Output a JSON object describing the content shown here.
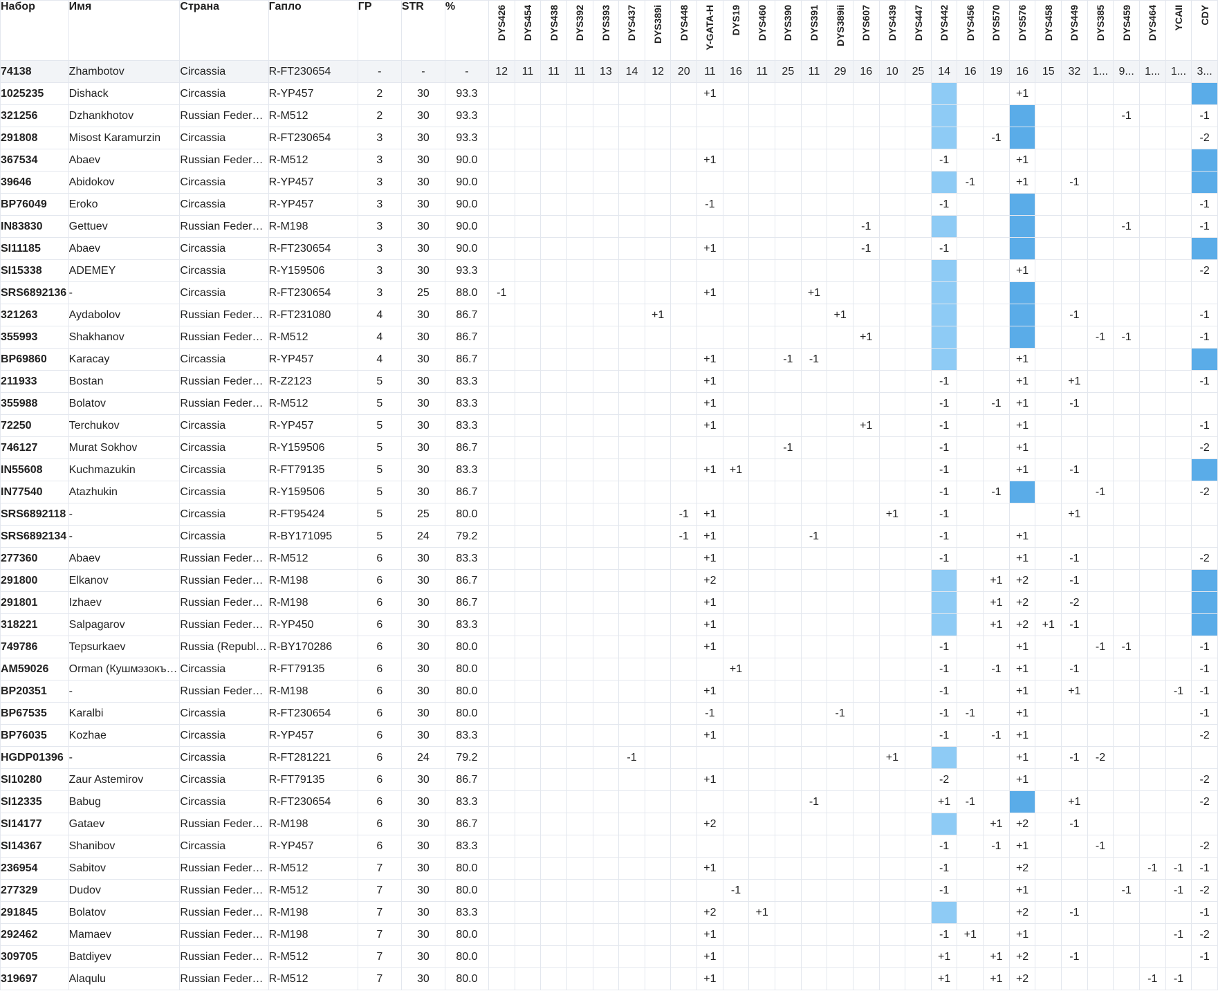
{
  "columns": {
    "kit": "Набор",
    "name": "Имя",
    "country": "Страна",
    "haplo": "Гапло",
    "gd": "ГР",
    "str": "STR",
    "pct": "%"
  },
  "markers": [
    "DYS426",
    "DYS454",
    "DYS438",
    "DYS392",
    "DYS393",
    "DYS437",
    "DYS389i",
    "DYS448",
    "Y-GATA-H",
    "DYS19",
    "DYS460",
    "DYS390",
    "DYS391",
    "DYS389ii",
    "DYS607",
    "DYS439",
    "DYS447",
    "DYS442",
    "DYS456",
    "DYS570",
    "DYS576",
    "DYS458",
    "DYS449",
    "DYS385",
    "DYS459",
    "DYS464",
    "YCAII",
    "CDY"
  ],
  "reference": {
    "kit": "74138",
    "name": "Zhambotov",
    "country": "Circassia",
    "haplo": "R-FT230654",
    "gd": "-",
    "str": "-",
    "pct": "-",
    "values": [
      "12",
      "11",
      "11",
      "11",
      "13",
      "14",
      "12",
      "20",
      "11",
      "16",
      "11",
      "25",
      "11",
      "29",
      "16",
      "10",
      "25",
      "14",
      "16",
      "19",
      "16",
      "15",
      "32",
      "1...",
      "9...",
      "1...",
      "1...",
      "3..."
    ]
  },
  "rows": [
    {
      "kit": "1025235",
      "name": "Dishack",
      "country": "Circassia",
      "haplo": "R-YP457",
      "gd": "2",
      "str": "30",
      "pct": "93.3",
      "cells": {
        "Y-GATA-H": "+1",
        "DYS576": "+1"
      },
      "shade": {
        "DYS442": 1,
        "CDY": 2
      }
    },
    {
      "kit": "321256",
      "name": "Dzhankhotov",
      "country": "Russian Federation",
      "haplo": "R-M512",
      "gd": "2",
      "str": "30",
      "pct": "93.3",
      "cells": {
        "DYS459": "-1",
        "CDY": "-1"
      },
      "shade": {
        "DYS442": 1,
        "DYS576": 2
      }
    },
    {
      "kit": "291808",
      "name": "Misost Karamurzin",
      "country": "Circassia",
      "haplo": "R-FT230654",
      "gd": "3",
      "str": "30",
      "pct": "93.3",
      "cells": {
        "DYS570": "-1",
        "CDY": "-2"
      },
      "shade": {
        "DYS442": 1,
        "DYS576": 2
      }
    },
    {
      "kit": "367534",
      "name": "Abaev",
      "country": "Russian Federation",
      "haplo": "R-M512",
      "gd": "3",
      "str": "30",
      "pct": "90.0",
      "cells": {
        "Y-GATA-H": "+1",
        "DYS442": "-1",
        "DYS576": "+1"
      },
      "shade": {
        "CDY": 2
      }
    },
    {
      "kit": "39646",
      "name": "Abidokov",
      "country": "Circassia",
      "haplo": "R-YP457",
      "gd": "3",
      "str": "30",
      "pct": "90.0",
      "cells": {
        "DYS456": "-1",
        "DYS576": "+1",
        "DYS449": "-1"
      },
      "shade": {
        "DYS442": 1,
        "CDY": 2
      }
    },
    {
      "kit": "BP76049",
      "name": "Eroko",
      "country": "Circassia",
      "haplo": "R-YP457",
      "gd": "3",
      "str": "30",
      "pct": "90.0",
      "cells": {
        "Y-GATA-H": "-1",
        "DYS442": "-1",
        "CDY": "-1"
      },
      "shade": {
        "DYS576": 2
      }
    },
    {
      "kit": "IN83830",
      "name": "Gettuev",
      "country": "Russian Federation",
      "haplo": "R-M198",
      "gd": "3",
      "str": "30",
      "pct": "90.0",
      "cells": {
        "DYS607": "-1",
        "DYS459": "-1",
        "CDY": "-1"
      },
      "shade": {
        "DYS442": 1,
        "DYS576": 2
      }
    },
    {
      "kit": "SI11185",
      "name": "Abaev",
      "country": "Circassia",
      "haplo": "R-FT230654",
      "gd": "3",
      "str": "30",
      "pct": "90.0",
      "cells": {
        "Y-GATA-H": "+1",
        "DYS607": "-1",
        "DYS442": "-1"
      },
      "shade": {
        "DYS576": 2,
        "CDY": 2
      }
    },
    {
      "kit": "SI15338",
      "name": "ADEMEY",
      "country": "Circassia",
      "haplo": "R-Y159506",
      "gd": "3",
      "str": "30",
      "pct": "93.3",
      "cells": {
        "DYS576": "+1",
        "CDY": "-2"
      },
      "shade": {
        "DYS442": 1
      }
    },
    {
      "kit": "SRS6892136",
      "name": "-",
      "country": "Circassia",
      "haplo": "R-FT230654",
      "gd": "3",
      "str": "25",
      "pct": "88.0",
      "cells": {
        "DYS426": "-1",
        "Y-GATA-H": "+1",
        "DYS391": "+1"
      },
      "shade": {
        "DYS442": 1,
        "DYS576": 2
      }
    },
    {
      "kit": "321263",
      "name": "Aydabolov",
      "country": "Russian Federation",
      "haplo": "R-FT231080",
      "gd": "4",
      "str": "30",
      "pct": "86.7",
      "cells": {
        "DYS389i": "+1",
        "DYS389ii": "+1",
        "DYS449": "-1",
        "CDY": "-1"
      },
      "shade": {
        "DYS442": 1,
        "DYS576": 2
      }
    },
    {
      "kit": "355993",
      "name": "Shakhanov",
      "country": "Russian Federation",
      "haplo": "R-M512",
      "gd": "4",
      "str": "30",
      "pct": "86.7",
      "cells": {
        "DYS607": "+1",
        "DYS385": "-1",
        "DYS459": "-1",
        "CDY": "-1"
      },
      "shade": {
        "DYS442": 1,
        "DYS576": 2
      }
    },
    {
      "kit": "BP69860",
      "name": "Karacay",
      "country": "Circassia",
      "haplo": "R-YP457",
      "gd": "4",
      "str": "30",
      "pct": "86.7",
      "cells": {
        "Y-GATA-H": "+1",
        "DYS390": "-1",
        "DYS391": "-1",
        "DYS576": "+1"
      },
      "shade": {
        "DYS442": 1,
        "CDY": 2
      }
    },
    {
      "kit": "211933",
      "name": "Bostan",
      "country": "Russian Federation",
      "haplo": "R-Z2123",
      "gd": "5",
      "str": "30",
      "pct": "83.3",
      "cells": {
        "Y-GATA-H": "+1",
        "DYS442": "-1",
        "DYS576": "+1",
        "DYS449": "+1",
        "CDY": "-1"
      },
      "shade": {}
    },
    {
      "kit": "355988",
      "name": "Bolatov",
      "country": "Russian Federation",
      "haplo": "R-M512",
      "gd": "5",
      "str": "30",
      "pct": "83.3",
      "cells": {
        "Y-GATA-H": "+1",
        "DYS442": "-1",
        "DYS570": "-1",
        "DYS576": "+1",
        "DYS449": "-1"
      },
      "shade": {}
    },
    {
      "kit": "72250",
      "name": "Terchukov",
      "country": "Circassia",
      "haplo": "R-YP457",
      "gd": "5",
      "str": "30",
      "pct": "83.3",
      "cells": {
        "Y-GATA-H": "+1",
        "DYS607": "+1",
        "DYS442": "-1",
        "DYS576": "+1",
        "CDY": "-1"
      },
      "shade": {}
    },
    {
      "kit": "746127",
      "name": "Murat Sokhov",
      "country": "Circassia",
      "haplo": "R-Y159506",
      "gd": "5",
      "str": "30",
      "pct": "86.7",
      "cells": {
        "DYS390": "-1",
        "DYS442": "-1",
        "DYS576": "+1",
        "CDY": "-2"
      },
      "shade": {}
    },
    {
      "kit": "IN55608",
      "name": "Kuchmazukin",
      "country": "Circassia",
      "haplo": "R-FT79135",
      "gd": "5",
      "str": "30",
      "pct": "83.3",
      "cells": {
        "Y-GATA-H": "+1",
        "DYS19": "+1",
        "DYS442": "-1",
        "DYS576": "+1",
        "DYS449": "-1"
      },
      "shade": {
        "CDY": 2
      }
    },
    {
      "kit": "IN77540",
      "name": "Atazhukin",
      "country": "Circassia",
      "haplo": "R-Y159506",
      "gd": "5",
      "str": "30",
      "pct": "86.7",
      "cells": {
        "DYS442": "-1",
        "DYS570": "-1",
        "DYS385": "-1",
        "CDY": "-2"
      },
      "shade": {
        "DYS576": 2
      }
    },
    {
      "kit": "SRS6892118",
      "name": "-",
      "country": "Circassia",
      "haplo": "R-FT95424",
      "gd": "5",
      "str": "25",
      "pct": "80.0",
      "cells": {
        "DYS448": "-1",
        "Y-GATA-H": "+1",
        "DYS439": "+1",
        "DYS442": "-1",
        "DYS449": "+1"
      },
      "shade": {}
    },
    {
      "kit": "SRS6892134",
      "name": "-",
      "country": "Circassia",
      "haplo": "R-BY171095",
      "gd": "5",
      "str": "24",
      "pct": "79.2",
      "cells": {
        "DYS448": "-1",
        "Y-GATA-H": "+1",
        "DYS391": "-1",
        "DYS442": "-1",
        "DYS576": "+1"
      },
      "shade": {}
    },
    {
      "kit": "277360",
      "name": "Abaev",
      "country": "Russian Federation",
      "haplo": "R-M512",
      "gd": "6",
      "str": "30",
      "pct": "83.3",
      "cells": {
        "Y-GATA-H": "+1",
        "DYS442": "-1",
        "DYS576": "+1",
        "DYS449": "-1",
        "CDY": "-2"
      },
      "shade": {}
    },
    {
      "kit": "291800",
      "name": "Elkanov",
      "country": "Russian Federation",
      "haplo": "R-M198",
      "gd": "6",
      "str": "30",
      "pct": "86.7",
      "cells": {
        "Y-GATA-H": "+2",
        "DYS570": "+1",
        "DYS576": "+2",
        "DYS449": "-1"
      },
      "shade": {
        "DYS442": 1,
        "CDY": 2
      }
    },
    {
      "kit": "291801",
      "name": "Izhaev",
      "country": "Russian Federation",
      "haplo": "R-M198",
      "gd": "6",
      "str": "30",
      "pct": "86.7",
      "cells": {
        "Y-GATA-H": "+1",
        "DYS570": "+1",
        "DYS576": "+2",
        "DYS449": "-2"
      },
      "shade": {
        "DYS442": 1,
        "CDY": 2
      }
    },
    {
      "kit": "318221",
      "name": "Salpagarov",
      "country": "Russian Federation",
      "haplo": "R-YP450",
      "gd": "6",
      "str": "30",
      "pct": "83.3",
      "cells": {
        "Y-GATA-H": "+1",
        "DYS570": "+1",
        "DYS576": "+2",
        "DYS458": "+1",
        "DYS449": "-1"
      },
      "shade": {
        "DYS442": 1,
        "CDY": 2
      }
    },
    {
      "kit": "749786",
      "name": "Tepsurkaev",
      "country": "Russia (Republic of Chechnya)",
      "haplo": "R-BY170286",
      "gd": "6",
      "str": "30",
      "pct": "80.0",
      "cells": {
        "Y-GATA-H": "+1",
        "DYS442": "-1",
        "DYS576": "+1",
        "DYS385": "-1",
        "DYS459": "-1",
        "CDY": "-1"
      },
      "shade": {}
    },
    {
      "kit": "AM59026",
      "name": "Orman (Кушмэзокъуэ)",
      "country": "Circassia",
      "haplo": "R-FT79135",
      "gd": "6",
      "str": "30",
      "pct": "80.0",
      "cells": {
        "DYS19": "+1",
        "DYS442": "-1",
        "DYS570": "-1",
        "DYS576": "+1",
        "DYS449": "-1",
        "CDY": "-1"
      },
      "shade": {}
    },
    {
      "kit": "BP20351",
      "name": "-",
      "country": "Russian Federation",
      "haplo": "R-M198",
      "gd": "6",
      "str": "30",
      "pct": "80.0",
      "cells": {
        "Y-GATA-H": "+1",
        "DYS442": "-1",
        "DYS576": "+1",
        "DYS449": "+1",
        "YCAII": "-1",
        "CDY": "-1"
      },
      "shade": {}
    },
    {
      "kit": "BP67535",
      "name": "Karalbi",
      "country": "Circassia",
      "haplo": "R-FT230654",
      "gd": "6",
      "str": "30",
      "pct": "80.0",
      "cells": {
        "Y-GATA-H": "-1",
        "DYS389ii": "-1",
        "DYS442": "-1",
        "DYS456": "-1",
        "DYS576": "+1",
        "CDY": "-1"
      },
      "shade": {}
    },
    {
      "kit": "BP76035",
      "name": "Kozhae",
      "country": "Circassia",
      "haplo": "R-YP457",
      "gd": "6",
      "str": "30",
      "pct": "83.3",
      "cells": {
        "Y-GATA-H": "+1",
        "DYS442": "-1",
        "DYS570": "-1",
        "DYS576": "+1",
        "CDY": "-2"
      },
      "shade": {}
    },
    {
      "kit": "HGDP01396",
      "name": "-",
      "country": "Circassia",
      "haplo": "R-FT281221",
      "gd": "6",
      "str": "24",
      "pct": "79.2",
      "cells": {
        "DYS437": "-1",
        "DYS439": "+1",
        "DYS576": "+1",
        "DYS449": "-1",
        "DYS385": "-2"
      },
      "shade": {
        "DYS442": 1
      }
    },
    {
      "kit": "SI10280",
      "name": "Zaur Astemirov",
      "country": "Circassia",
      "haplo": "R-FT79135",
      "gd": "6",
      "str": "30",
      "pct": "86.7",
      "cells": {
        "Y-GATA-H": "+1",
        "DYS442": "-2",
        "DYS576": "+1",
        "CDY": "-2"
      },
      "shade": {}
    },
    {
      "kit": "SI12335",
      "name": "Babug",
      "country": "Circassia",
      "haplo": "R-FT230654",
      "gd": "6",
      "str": "30",
      "pct": "83.3",
      "cells": {
        "DYS391": "-1",
        "DYS442": "+1",
        "DYS456": "-1",
        "DYS449": "+1",
        "CDY": "-2"
      },
      "shade": {
        "DYS576": 2
      }
    },
    {
      "kit": "SI14177",
      "name": "Gataev",
      "country": "Russian Federation",
      "haplo": "R-M198",
      "gd": "6",
      "str": "30",
      "pct": "86.7",
      "cells": {
        "Y-GATA-H": "+2",
        "DYS570": "+1",
        "DYS576": "+2",
        "DYS449": "-1"
      },
      "shade": {
        "DYS442": 1
      }
    },
    {
      "kit": "SI14367",
      "name": "Shanibov",
      "country": "Circassia",
      "haplo": "R-YP457",
      "gd": "6",
      "str": "30",
      "pct": "83.3",
      "cells": {
        "DYS442": "-1",
        "DYS570": "-1",
        "DYS576": "+1",
        "DYS385": "-1",
        "CDY": "-2"
      },
      "shade": {}
    },
    {
      "kit": "236954",
      "name": "Sabitov",
      "country": "Russian Federation",
      "haplo": "R-M512",
      "gd": "7",
      "str": "30",
      "pct": "80.0",
      "cells": {
        "Y-GATA-H": "+1",
        "DYS442": "-1",
        "DYS576": "+2",
        "DYS464": "-1",
        "YCAII": "-1",
        "CDY": "-1"
      },
      "shade": {}
    },
    {
      "kit": "277329",
      "name": "Dudov",
      "country": "Russian Federation",
      "haplo": "R-M512",
      "gd": "7",
      "str": "30",
      "pct": "80.0",
      "cells": {
        "DYS19": "-1",
        "DYS442": "-1",
        "DYS576": "+1",
        "DYS459": "-1",
        "YCAII": "-1",
        "CDY": "-2"
      },
      "shade": {}
    },
    {
      "kit": "291845",
      "name": "Bolatov",
      "country": "Russian Federation",
      "haplo": "R-M198",
      "gd": "7",
      "str": "30",
      "pct": "83.3",
      "cells": {
        "Y-GATA-H": "+2",
        "DYS460": "+1",
        "DYS576": "+2",
        "DYS449": "-1",
        "CDY": "-1"
      },
      "shade": {
        "DYS442": 1
      }
    },
    {
      "kit": "292462",
      "name": "Mamaev",
      "country": "Russian Federation",
      "haplo": "R-M198",
      "gd": "7",
      "str": "30",
      "pct": "80.0",
      "cells": {
        "Y-GATA-H": "+1",
        "DYS442": "-1",
        "DYS456": "+1",
        "DYS576": "+1",
        "YCAII": "-1",
        "CDY": "-2"
      },
      "shade": {}
    },
    {
      "kit": "309705",
      "name": "Batdiyev",
      "country": "Russian Federation",
      "haplo": "R-M512",
      "gd": "7",
      "str": "30",
      "pct": "80.0",
      "cells": {
        "Y-GATA-H": "+1",
        "DYS442": "+1",
        "DYS570": "+1",
        "DYS576": "+2",
        "DYS449": "-1",
        "CDY": "-1"
      },
      "shade": {}
    },
    {
      "kit": "319697",
      "name": "Alaqulu",
      "country": "Russian Federation",
      "haplo": "R-M512",
      "gd": "7",
      "str": "30",
      "pct": "80.0",
      "cells": {
        "Y-GATA-H": "+1",
        "DYS442": "+1",
        "DYS570": "+1",
        "DYS576": "+2",
        "DYS464": "-1",
        "YCAII": "-1"
      },
      "shade": {}
    }
  ]
}
